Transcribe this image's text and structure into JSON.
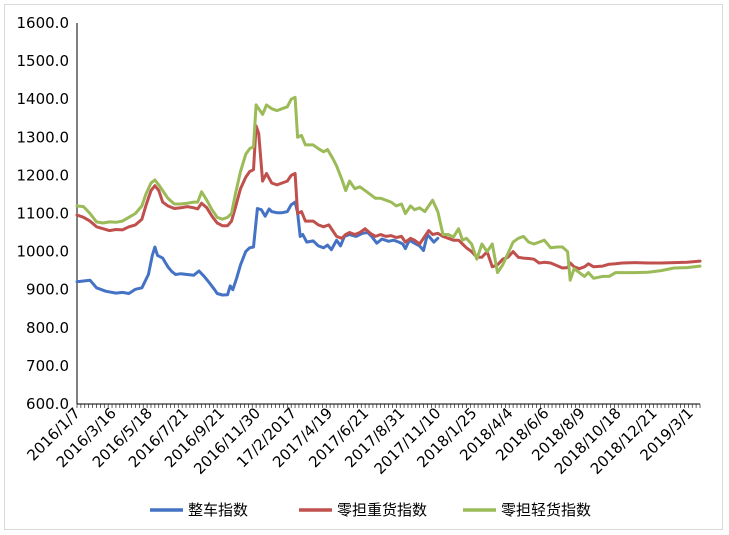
{
  "chart_data": {
    "type": "line",
    "ylim": [
      600,
      1600
    ],
    "yticks": [
      "600.0",
      "700.0",
      "800.0",
      "900.0",
      "1000.0",
      "1100.0",
      "1200.0",
      "1300.0",
      "1400.0",
      "1500.0",
      "1600.0"
    ],
    "x_tick_labels": [
      "2016/1/7",
      "2016/3/16",
      "2016/5/18",
      "2016/7/21",
      "2016/9/21",
      "2016/11/30",
      "17/2/2017",
      "2017/4/19",
      "2017/6/21",
      "2017/8/31",
      "2017/11/10",
      "2018/1/25",
      "2018/4/4",
      "2018/6/6",
      "2018/8/9",
      "2018/10/18",
      "2018/12/21",
      "2019/3/1"
    ],
    "grid": false,
    "legend_position": "bottom",
    "series": [
      {
        "name": "整车指数",
        "color": "#4472C4",
        "points": [
          [
            0,
            921
          ],
          [
            1,
            925
          ],
          [
            1.5,
            905
          ],
          [
            2.2,
            896
          ],
          [
            3,
            891
          ],
          [
            3.5,
            893
          ],
          [
            4,
            890
          ],
          [
            4.5,
            901
          ],
          [
            5,
            905
          ],
          [
            5.5,
            940
          ],
          [
            5.8,
            990
          ],
          [
            6,
            1012
          ],
          [
            6.2,
            990
          ],
          [
            6.6,
            983
          ],
          [
            7,
            960
          ],
          [
            7.3,
            948
          ],
          [
            7.6,
            940
          ],
          [
            8,
            942
          ],
          [
            8.5,
            940
          ],
          [
            9,
            938
          ],
          [
            9.4,
            949
          ],
          [
            9.8,
            935
          ],
          [
            10.2,
            918
          ],
          [
            10.6,
            900
          ],
          [
            10.8,
            890
          ],
          [
            11.2,
            886
          ],
          [
            11.6,
            887
          ],
          [
            11.8,
            910
          ],
          [
            12,
            900
          ],
          [
            12.3,
            930
          ],
          [
            12.6,
            965
          ],
          [
            13,
            1000
          ],
          [
            13.3,
            1010
          ],
          [
            13.6,
            1012
          ],
          [
            13.9,
            1113
          ],
          [
            14.2,
            1110
          ],
          [
            14.5,
            1093
          ],
          [
            14.8,
            1112
          ],
          [
            15,
            1105
          ],
          [
            15.4,
            1102
          ],
          [
            15.8,
            1102
          ],
          [
            16.2,
            1105
          ],
          [
            16.5,
            1123
          ],
          [
            16.8,
            1130
          ],
          [
            17,
            1102
          ],
          [
            17.2,
            1040
          ],
          [
            17.4,
            1045
          ],
          [
            17.7,
            1025
          ],
          [
            18.2,
            1028
          ],
          [
            18.6,
            1015
          ],
          [
            19,
            1010
          ],
          [
            19.3,
            1017
          ],
          [
            19.6,
            1005
          ],
          [
            20,
            1030
          ],
          [
            20.3,
            1015
          ],
          [
            20.6,
            1040
          ],
          [
            21,
            1045
          ],
          [
            21.5,
            1040
          ],
          [
            22,
            1048
          ],
          [
            22.4,
            1050
          ],
          [
            22.7,
            1040
          ],
          [
            23.1,
            1022
          ],
          [
            23.5,
            1033
          ],
          [
            24,
            1027
          ],
          [
            24.4,
            1030
          ],
          [
            24.8,
            1025
          ],
          [
            25.1,
            1020
          ],
          [
            25.3,
            1008
          ],
          [
            25.6,
            1030
          ],
          [
            26,
            1022
          ],
          [
            26.4,
            1015
          ],
          [
            26.7,
            1003
          ],
          [
            27,
            1045
          ],
          [
            27.5,
            1025
          ],
          [
            27.8,
            1035
          ]
        ]
      },
      {
        "name": "零担重货指数",
        "color": "#C0504D",
        "points": [
          [
            0,
            1096
          ],
          [
            0.5,
            1090
          ],
          [
            1,
            1080
          ],
          [
            1.5,
            1065
          ],
          [
            2,
            1060
          ],
          [
            2.5,
            1055
          ],
          [
            3,
            1058
          ],
          [
            3.5,
            1057
          ],
          [
            4,
            1065
          ],
          [
            4.5,
            1070
          ],
          [
            5,
            1085
          ],
          [
            5.3,
            1120
          ],
          [
            5.7,
            1160
          ],
          [
            6,
            1173
          ],
          [
            6.3,
            1160
          ],
          [
            6.6,
            1130
          ],
          [
            7,
            1120
          ],
          [
            7.5,
            1113
          ],
          [
            8,
            1115
          ],
          [
            8.5,
            1118
          ],
          [
            9,
            1115
          ],
          [
            9.3,
            1112
          ],
          [
            9.6,
            1127
          ],
          [
            10,
            1115
          ],
          [
            10.4,
            1093
          ],
          [
            10.8,
            1075
          ],
          [
            11.2,
            1068
          ],
          [
            11.6,
            1068
          ],
          [
            11.9,
            1080
          ],
          [
            12.2,
            1115
          ],
          [
            12.6,
            1165
          ],
          [
            13,
            1195
          ],
          [
            13.3,
            1210
          ],
          [
            13.6,
            1215
          ],
          [
            13.8,
            1330
          ],
          [
            14,
            1310
          ],
          [
            14.3,
            1185
          ],
          [
            14.6,
            1205
          ],
          [
            15,
            1180
          ],
          [
            15.4,
            1175
          ],
          [
            15.8,
            1180
          ],
          [
            16.2,
            1185
          ],
          [
            16.5,
            1200
          ],
          [
            16.8,
            1205
          ],
          [
            17,
            1100
          ],
          [
            17.3,
            1105
          ],
          [
            17.6,
            1080
          ],
          [
            18.2,
            1080
          ],
          [
            18.6,
            1070
          ],
          [
            19,
            1065
          ],
          [
            19.4,
            1070
          ],
          [
            19.7,
            1055
          ],
          [
            20,
            1040
          ],
          [
            20.4,
            1035
          ],
          [
            20.7,
            1045
          ],
          [
            21,
            1050
          ],
          [
            21.4,
            1045
          ],
          [
            21.8,
            1050
          ],
          [
            22.2,
            1060
          ],
          [
            22.6,
            1048
          ],
          [
            23,
            1040
          ],
          [
            23.4,
            1045
          ],
          [
            23.8,
            1040
          ],
          [
            24.2,
            1042
          ],
          [
            24.6,
            1037
          ],
          [
            25,
            1040
          ],
          [
            25.3,
            1025
          ],
          [
            25.7,
            1035
          ],
          [
            26,
            1030
          ],
          [
            26.4,
            1020
          ],
          [
            26.8,
            1040
          ],
          [
            27.1,
            1055
          ],
          [
            27.4,
            1045
          ],
          [
            27.8,
            1048
          ],
          [
            28.2,
            1040
          ],
          [
            28.6,
            1035
          ],
          [
            29,
            1030
          ],
          [
            29.4,
            1030
          ],
          [
            29.7,
            1020
          ],
          [
            30,
            1010
          ],
          [
            30.4,
            1000
          ],
          [
            30.8,
            985
          ],
          [
            31.2,
            985
          ],
          [
            31.6,
            1000
          ],
          [
            32,
            960
          ],
          [
            32.4,
            965
          ],
          [
            32.8,
            980
          ],
          [
            33.2,
            985
          ],
          [
            33.6,
            1000
          ],
          [
            34,
            985
          ],
          [
            34.4,
            983
          ],
          [
            34.8,
            982
          ],
          [
            35.2,
            980
          ],
          [
            35.6,
            970
          ],
          [
            36,
            972
          ],
          [
            36.5,
            970
          ],
          [
            37,
            963
          ],
          [
            37.4,
            957
          ],
          [
            37.8,
            958
          ],
          [
            38,
            970
          ],
          [
            38.3,
            960
          ],
          [
            38.7,
            955
          ],
          [
            39.1,
            960
          ],
          [
            39.4,
            968
          ],
          [
            39.8,
            960
          ],
          [
            40.5,
            962
          ],
          [
            41,
            967
          ],
          [
            41.5,
            968
          ],
          [
            42,
            970
          ],
          [
            43,
            971
          ],
          [
            44,
            970
          ],
          [
            45,
            970
          ],
          [
            46,
            971
          ],
          [
            47,
            972
          ],
          [
            48,
            975
          ]
        ]
      },
      {
        "name": "零担轻货指数",
        "color": "#9BBB59",
        "points": [
          [
            0,
            1120
          ],
          [
            0.5,
            1118
          ],
          [
            1,
            1100
          ],
          [
            1.5,
            1078
          ],
          [
            2,
            1075
          ],
          [
            2.5,
            1078
          ],
          [
            3,
            1077
          ],
          [
            3.5,
            1080
          ],
          [
            4,
            1090
          ],
          [
            4.5,
            1100
          ],
          [
            5,
            1120
          ],
          [
            5.3,
            1150
          ],
          [
            5.7,
            1180
          ],
          [
            6,
            1188
          ],
          [
            6.3,
            1175
          ],
          [
            6.6,
            1160
          ],
          [
            7,
            1140
          ],
          [
            7.5,
            1125
          ],
          [
            8,
            1125
          ],
          [
            8.5,
            1127
          ],
          [
            9,
            1130
          ],
          [
            9.3,
            1130
          ],
          [
            9.6,
            1157
          ],
          [
            10,
            1135
          ],
          [
            10.4,
            1110
          ],
          [
            10.8,
            1090
          ],
          [
            11.2,
            1085
          ],
          [
            11.6,
            1090
          ],
          [
            11.9,
            1100
          ],
          [
            12.2,
            1150
          ],
          [
            12.6,
            1210
          ],
          [
            13,
            1255
          ],
          [
            13.3,
            1270
          ],
          [
            13.6,
            1275
          ],
          [
            13.8,
            1385
          ],
          [
            14,
            1375
          ],
          [
            14.3,
            1360
          ],
          [
            14.6,
            1385
          ],
          [
            15,
            1375
          ],
          [
            15.4,
            1370
          ],
          [
            15.8,
            1375
          ],
          [
            16.2,
            1380
          ],
          [
            16.5,
            1400
          ],
          [
            16.8,
            1405
          ],
          [
            17,
            1300
          ],
          [
            17.3,
            1305
          ],
          [
            17.6,
            1280
          ],
          [
            18.2,
            1280
          ],
          [
            18.6,
            1270
          ],
          [
            19,
            1262
          ],
          [
            19.3,
            1268
          ],
          [
            19.7,
            1245
          ],
          [
            20,
            1225
          ],
          [
            20.4,
            1190
          ],
          [
            20.7,
            1160
          ],
          [
            21,
            1185
          ],
          [
            21.4,
            1165
          ],
          [
            21.8,
            1170
          ],
          [
            22.2,
            1160
          ],
          [
            22.6,
            1150
          ],
          [
            23,
            1140
          ],
          [
            23.4,
            1140
          ],
          [
            23.8,
            1135
          ],
          [
            24.2,
            1130
          ],
          [
            24.6,
            1120
          ],
          [
            25,
            1125
          ],
          [
            25.3,
            1100
          ],
          [
            25.7,
            1120
          ],
          [
            26,
            1110
          ],
          [
            26.4,
            1115
          ],
          [
            26.8,
            1105
          ],
          [
            27.1,
            1120
          ],
          [
            27.4,
            1135
          ],
          [
            27.8,
            1105
          ],
          [
            28.2,
            1045
          ],
          [
            28.6,
            1045
          ],
          [
            29,
            1038
          ],
          [
            29.4,
            1060
          ],
          [
            29.7,
            1030
          ],
          [
            30,
            1035
          ],
          [
            30.4,
            1020
          ],
          [
            30.8,
            980
          ],
          [
            31.2,
            1020
          ],
          [
            31.6,
            1000
          ],
          [
            32,
            1020
          ],
          [
            32.4,
            945
          ],
          [
            32.8,
            965
          ],
          [
            33.2,
            995
          ],
          [
            33.6,
            1025
          ],
          [
            34,
            1035
          ],
          [
            34.4,
            1040
          ],
          [
            34.8,
            1025
          ],
          [
            35.2,
            1020
          ],
          [
            35.6,
            1025
          ],
          [
            36,
            1030
          ],
          [
            36.5,
            1010
          ],
          [
            37,
            1012
          ],
          [
            37.4,
            1012
          ],
          [
            37.8,
            1000
          ],
          [
            38,
            925
          ],
          [
            38.3,
            955
          ],
          [
            38.7,
            945
          ],
          [
            39.1,
            935
          ],
          [
            39.4,
            945
          ],
          [
            39.8,
            930
          ],
          [
            40.5,
            935
          ],
          [
            41,
            935
          ],
          [
            41.5,
            945
          ],
          [
            42,
            945
          ],
          [
            43,
            945
          ],
          [
            44,
            946
          ],
          [
            45,
            950
          ],
          [
            46,
            957
          ],
          [
            47,
            958
          ],
          [
            48,
            962
          ]
        ]
      }
    ]
  },
  "legend": {
    "items": [
      "整车指数",
      "零担重货指数",
      "零担轻货指数"
    ]
  }
}
